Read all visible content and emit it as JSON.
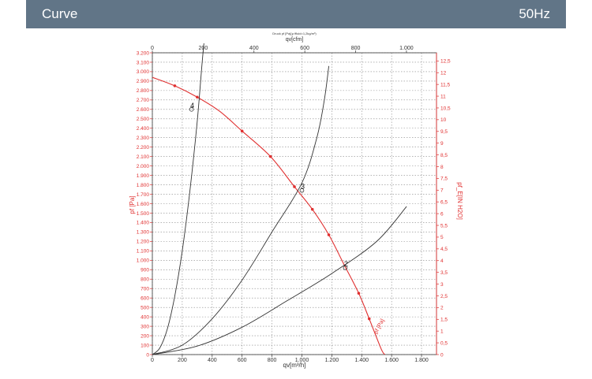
{
  "header": {
    "title": "Curve",
    "frequency": "50Hz"
  },
  "colors": {
    "header_bg": "#617587",
    "axis_black": "#333333",
    "pressure_red": "#e03030",
    "grid": "#888888"
  },
  "chart_data": {
    "type": "line",
    "title": "Druck pf [Pa](ρ ffluid=1,2kg/m³)",
    "xlabel": "qv[m³/h]",
    "xlabel_top": "qv[cfm]",
    "ylabel": "pf [Pa]",
    "ylabel_right": "pf_E[IN H2O]",
    "xlim": [
      0,
      1900
    ],
    "ylim": [
      0,
      3200
    ],
    "x_ticks": [
      0,
      200,
      400,
      600,
      800,
      1000,
      1200,
      1400,
      1600,
      1800
    ],
    "x_tick_labels": [
      "0",
      "200",
      "400",
      "600",
      "800",
      "1.000",
      "1.200",
      "1.400",
      "1.600",
      "1.800"
    ],
    "x_top_ticks": [
      0,
      200,
      400,
      600,
      800,
      1000
    ],
    "x_top_tick_labels": [
      "0",
      "200",
      "400",
      "600",
      "800",
      "1.000"
    ],
    "y_ticks": [
      0,
      100,
      200,
      300,
      400,
      500,
      600,
      700,
      800,
      900,
      1000,
      1100,
      1200,
      1300,
      1400,
      1500,
      1600,
      1700,
      1800,
      1900,
      2000,
      2100,
      2200,
      2300,
      2400,
      2500,
      2600,
      2700,
      2800,
      2900,
      3000,
      3100,
      3200
    ],
    "y_tick_labels": [
      "0",
      "100",
      "200",
      "300",
      "400",
      "500",
      "600",
      "700",
      "800",
      "900",
      "1.000",
      "1.100",
      "1.200",
      "1.300",
      "1.400",
      "1.500",
      "1.600",
      "1.700",
      "1.800",
      "1.900",
      "2.000",
      "2.100",
      "2.200",
      "2.300",
      "2.400",
      "2.500",
      "2.600",
      "2.700",
      "2.800",
      "2.900",
      "3.000",
      "3.100",
      "3.200"
    ],
    "y_right_ticks": [
      0,
      0.5,
      1,
      1.5,
      2,
      2.5,
      3,
      3.5,
      4,
      4.5,
      5,
      5.5,
      6,
      6.5,
      7,
      7.5,
      8,
      8.5,
      9,
      9.5,
      10,
      10.5,
      11,
      11.5,
      12,
      12.5
    ],
    "y_right_tick_labels": [
      "0",
      "0,5",
      "1",
      "1,5",
      "2",
      "2,5",
      "3",
      "3,5",
      "4",
      "4,5",
      "5",
      "5,5",
      "6",
      "6,5",
      "7",
      "7,5",
      "8",
      "8,5",
      "9",
      "9,5",
      "10",
      "10,5",
      "11",
      "11,5",
      "12",
      "12,5"
    ],
    "grid": true,
    "series": [
      {
        "name": "pf [Pa]",
        "color": "#e03030",
        "x": [
          0,
          150,
          300,
          450,
          600,
          790,
          950,
          1070,
          1180,
          1280,
          1380,
          1450,
          1530,
          1555
        ],
        "y": [
          2940,
          2850,
          2730,
          2580,
          2370,
          2100,
          1780,
          1540,
          1270,
          960,
          650,
          380,
          60,
          0
        ],
        "markers_x": [
          150,
          300,
          600,
          790,
          950,
          1070,
          1180,
          1380,
          1450
        ],
        "markers_y": [
          2850,
          2730,
          2370,
          2100,
          1780,
          1540,
          1270,
          650,
          380
        ]
      },
      {
        "color": "#333333",
        "x": [
          0,
          50,
          100,
          150,
          200,
          250,
          300,
          350,
          380
        ],
        "y": [
          0,
          70,
          270,
          620,
          1100,
          1720,
          2470,
          3370,
          3350
        ]
      },
      {
        "color": "#333333",
        "x": [
          0,
          200,
          400,
          600,
          800,
          1000,
          1100,
          1150,
          1180
        ],
        "y": [
          0,
          100,
          380,
          790,
          1300,
          1820,
          2300,
          2700,
          3060
        ]
      },
      {
        "color": "#333333",
        "x": [
          0,
          300,
          600,
          900,
          1200,
          1500,
          1700
        ],
        "y": [
          0,
          90,
          290,
          570,
          860,
          1200,
          1570
        ]
      }
    ],
    "operating_points": [
      {
        "label": "4",
        "x": 262,
        "y": 2600
      },
      {
        "label": "3",
        "x": 1000,
        "y": 1740
      },
      {
        "label": "2",
        "x": 1290,
        "y": 920
      }
    ]
  }
}
